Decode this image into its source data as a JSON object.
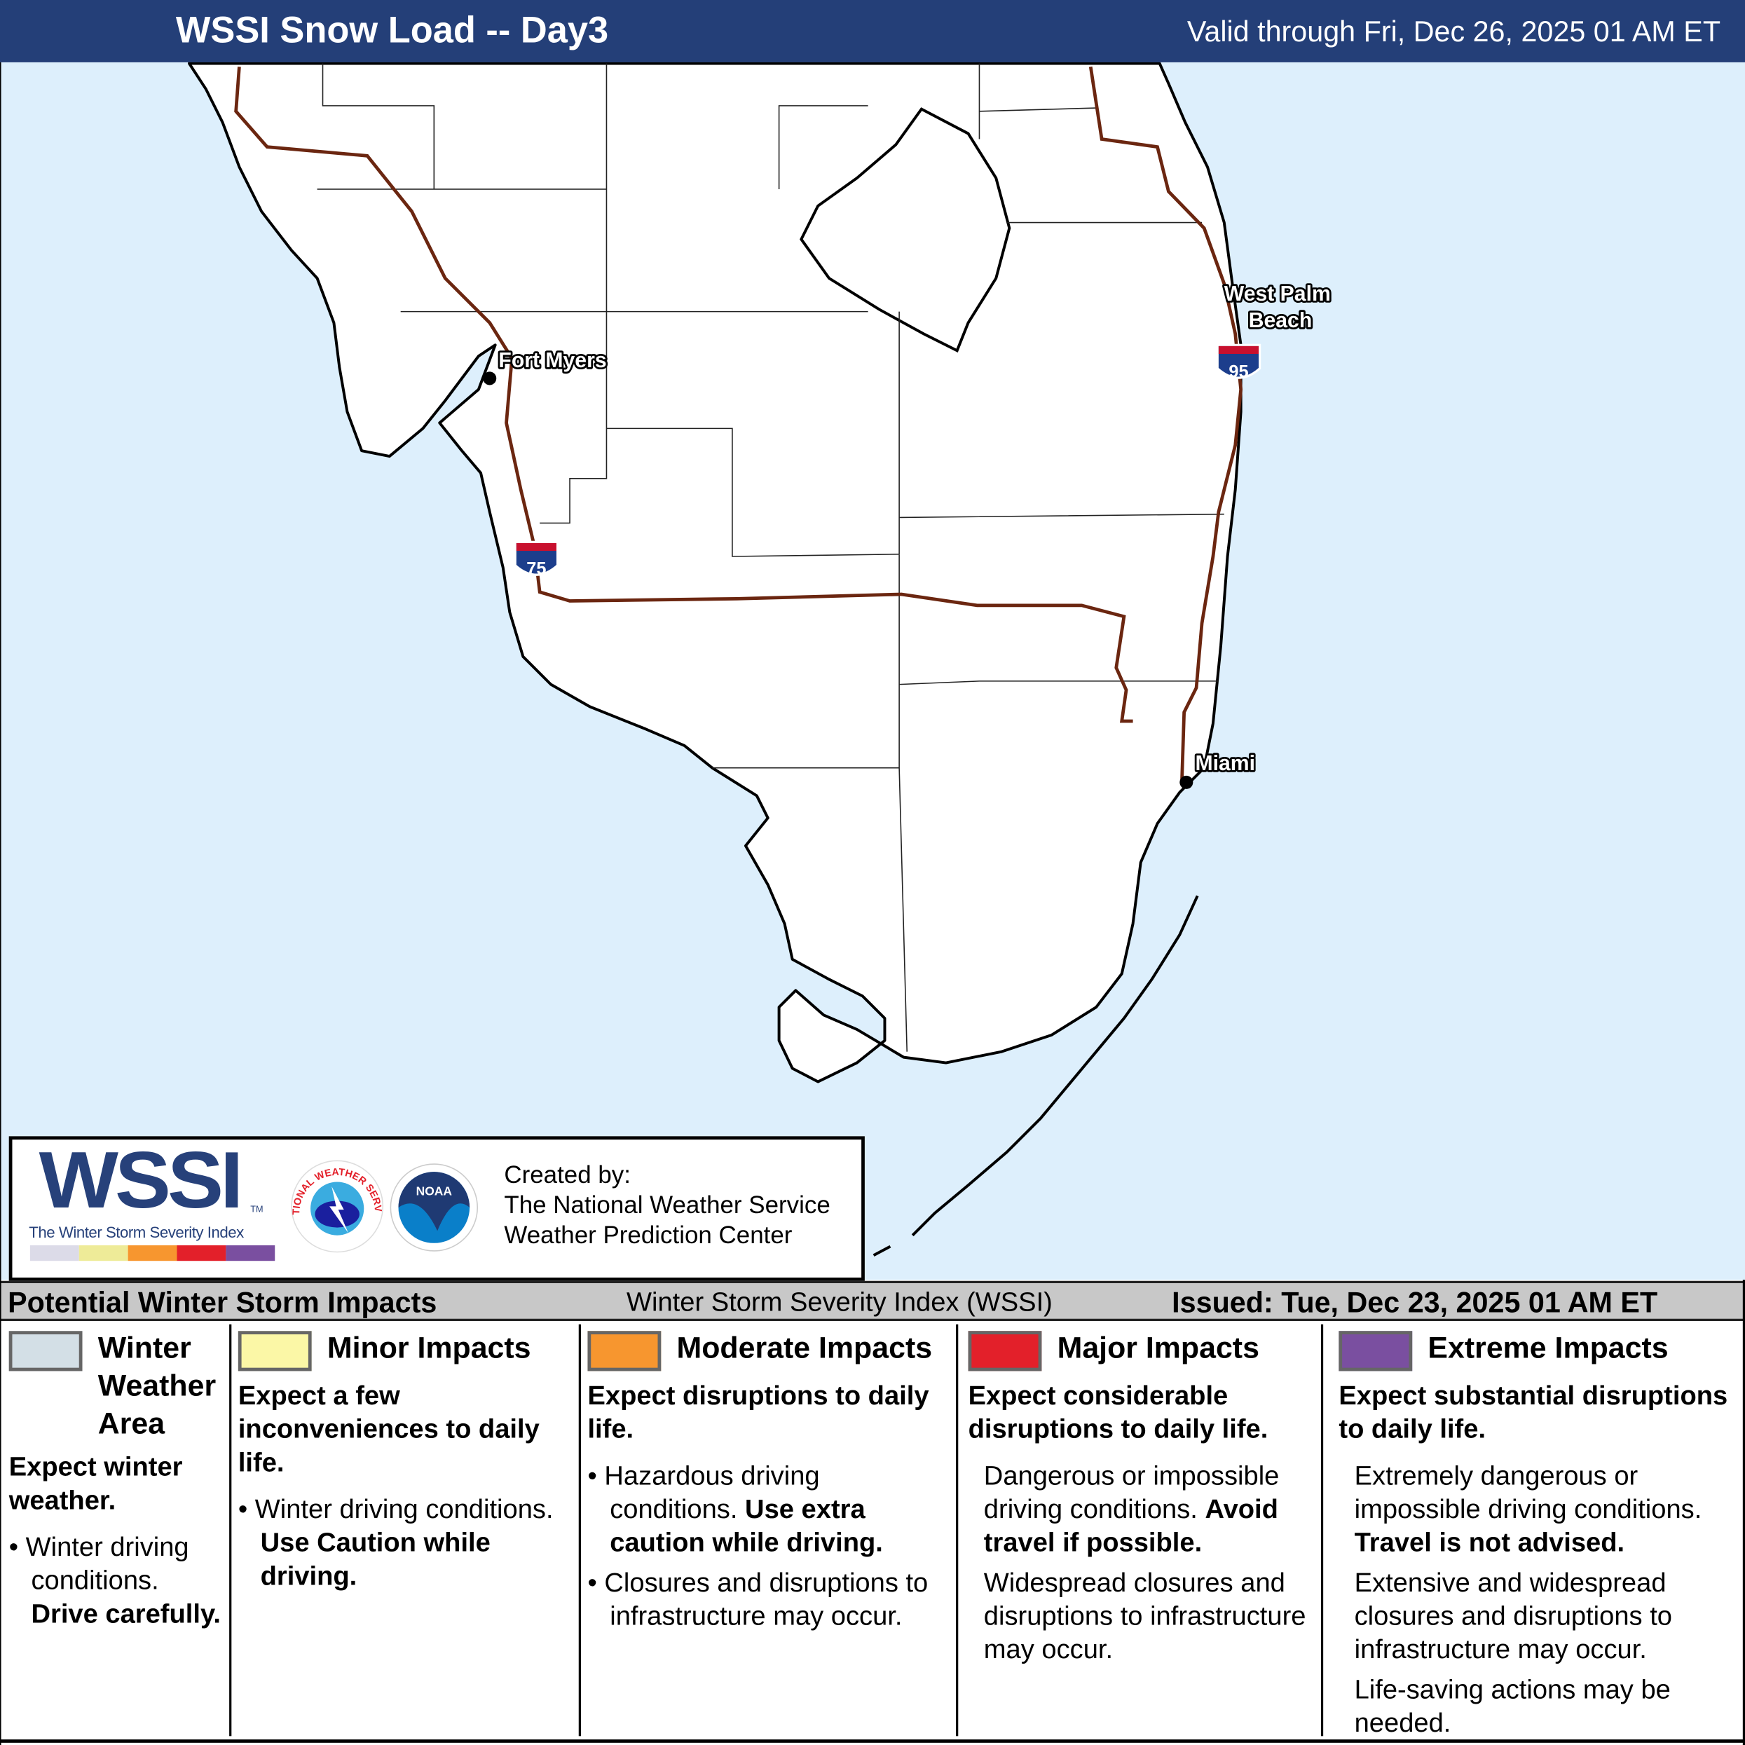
{
  "header": {
    "title": "WSSI Snow Load -- Day3",
    "valid": "Valid through Fri, Dec 26, 2025 01 AM ET"
  },
  "colors": {
    "header": "#243f78",
    "ocean": "#ddeffc",
    "highway": "#6b2610",
    "winter_area": "#d3dfe6",
    "minor": "#fbf7a6",
    "moderate": "#f7962f",
    "major": "#e3202a",
    "extreme": "#7a4fa0"
  },
  "map": {
    "cities": [
      {
        "name": "Fort Myers"
      },
      {
        "name": "West Palm"
      },
      {
        "name": "Beach"
      },
      {
        "name": "Miami"
      }
    ],
    "shields": [
      {
        "label": "75"
      },
      {
        "label": "95"
      }
    ]
  },
  "logo": {
    "wssi": "WSSI",
    "tm": "TM",
    "tagline": "The Winter Storm Severity Index",
    "nws_text": "NATIONAL WEATHER SERVICE",
    "noaa": "NOAA",
    "credits": [
      "Created by:",
      "The National Weather Service",
      "Weather Prediction Center"
    ]
  },
  "bar": {
    "left": "Potential Winter Storm Impacts",
    "center": "Winter Storm Severity Index (WSSI)",
    "right": "Issued: Tue, Dec 23, 2025 01 AM ET"
  },
  "legend": [
    {
      "title_lines": [
        "Winter",
        "Weather",
        "Area"
      ],
      "summary": "Expect winter weather.",
      "bullet": "Winter driving conditions.",
      "bold": "Drive carefully."
    },
    {
      "title": "Minor Impacts",
      "summary": "Expect a few inconveniences to daily life.",
      "bullet": "Winter driving conditions.",
      "bold": "Use Caution while driving."
    },
    {
      "title": "Moderate Impacts",
      "summary": "Expect disruptions to daily life.",
      "bullet": "Hazardous driving conditions.",
      "bold": "Use extra caution while driving.",
      "bullet2": "Closures and disruptions to infrastructure may occur."
    },
    {
      "title": "Major Impacts",
      "summary": "Expect considerable disruptions to daily life.",
      "text": "Dangerous or impossible driving conditions.",
      "bold": "Avoid travel if possible.",
      "text2": "Widespread closures and disruptions to infrastructure may occur."
    },
    {
      "title": "Extreme Impacts",
      "summary": "Expect substantial disruptions to daily life.",
      "text": "Extremely dangerous or impossible driving conditions.",
      "bold": "Travel is not advised.",
      "text2": "Extensive and widespread closures and disruptions to infrastructure may occur.",
      "text3": "Life-saving actions may be needed."
    }
  ]
}
